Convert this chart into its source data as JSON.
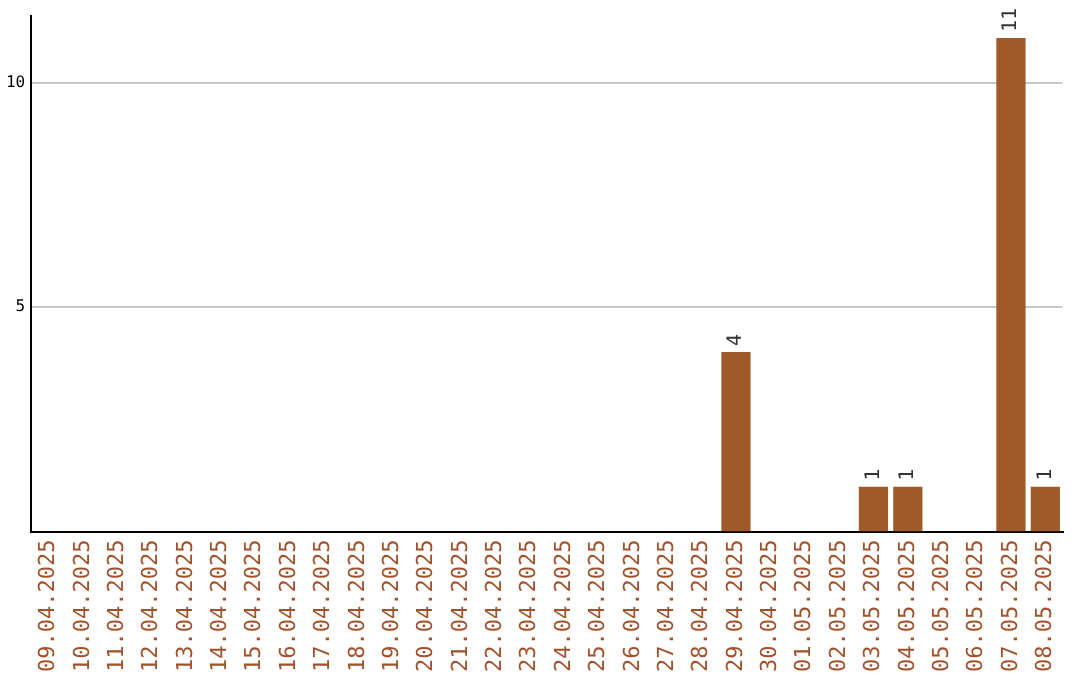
{
  "chart_data": {
    "type": "bar",
    "categories": [
      "09.04.2025",
      "10.04.2025",
      "11.04.2025",
      "12.04.2025",
      "13.04.2025",
      "14.04.2025",
      "15.04.2025",
      "16.04.2025",
      "17.04.2025",
      "18.04.2025",
      "19.04.2025",
      "20.04.2025",
      "21.04.2025",
      "22.04.2025",
      "23.04.2025",
      "24.04.2025",
      "25.04.2025",
      "26.04.2025",
      "27.04.2025",
      "28.04.2025",
      "29.04.2025",
      "30.04.2025",
      "01.05.2025",
      "02.05.2025",
      "03.05.2025",
      "04.05.2025",
      "05.05.2025",
      "06.05.2025",
      "07.05.2025",
      "08.05.2025"
    ],
    "values": [
      0,
      0,
      0,
      0,
      0,
      0,
      0,
      0,
      0,
      0,
      0,
      0,
      0,
      0,
      0,
      0,
      0,
      0,
      0,
      0,
      4,
      0,
      0,
      0,
      1,
      1,
      0,
      0,
      11,
      1
    ],
    "value_labels": [
      null,
      null,
      null,
      null,
      null,
      null,
      null,
      null,
      null,
      null,
      null,
      null,
      null,
      null,
      null,
      null,
      null,
      null,
      null,
      null,
      "4",
      null,
      null,
      null,
      "1",
      "1",
      null,
      null,
      "11",
      "1"
    ],
    "color": "#a0592a",
    "ylim": [
      0,
      11.5
    ],
    "yticks": [
      5,
      10
    ],
    "grid": "y",
    "legend": false
  }
}
